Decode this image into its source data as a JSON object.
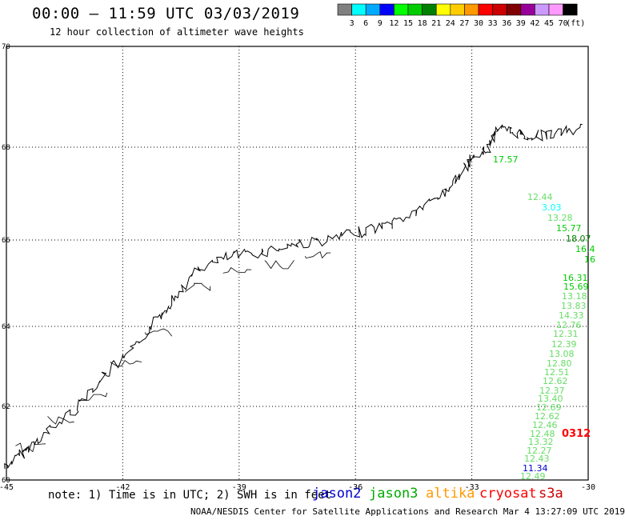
{
  "header": {
    "title": "00:00 – 11:59 UTC 03/03/2019",
    "subtitle": "12 hour collection of altimeter wave heights"
  },
  "legend": {
    "unit": "(ft)",
    "bins": [
      {
        "label": "3",
        "color": "#808080"
      },
      {
        "label": "6",
        "color": "#00ffff"
      },
      {
        "label": "9",
        "color": "#00aaff"
      },
      {
        "label": "12",
        "color": "#0000ff"
      },
      {
        "label": "15",
        "color": "#00ff00"
      },
      {
        "label": "18",
        "color": "#00cc00"
      },
      {
        "label": "21",
        "color": "#008000"
      },
      {
        "label": "24",
        "color": "#ffff00"
      },
      {
        "label": "27",
        "color": "#ffcc00"
      },
      {
        "label": "30",
        "color": "#ff9900"
      },
      {
        "label": "33",
        "color": "#ff0000"
      },
      {
        "label": "36",
        "color": "#cc0000"
      },
      {
        "label": "39",
        "color": "#800000"
      },
      {
        "label": "42",
        "color": "#990099"
      },
      {
        "label": "45",
        "color": "#cc99ff"
      },
      {
        "label": "70",
        "color": "#ff99ff"
      },
      {
        "label": "",
        "color": "#000000"
      }
    ]
  },
  "map": {
    "lon_range": [
      -45,
      -30
    ],
    "lat_range": [
      60,
      70
    ],
    "lon_ticks": [
      "-45",
      "-42",
      "-39",
      "-36",
      "-33",
      "-30"
    ],
    "lat_ticks": [
      "70",
      "68",
      "66",
      "64",
      "62",
      "60"
    ],
    "grid": true
  },
  "observations": [
    {
      "value": "17.57",
      "color": "#00cc00"
    },
    {
      "value": "12.44",
      "color": "#66dd66"
    },
    {
      "value": "3.03",
      "color": "#00ffff"
    },
    {
      "value": "13.28",
      "color": "#66dd66"
    },
    {
      "value": "15.77",
      "color": "#00cc00"
    },
    {
      "value": "18.07",
      "color": "#008000"
    },
    {
      "value": "16.4",
      "color": "#00cc00"
    },
    {
      "value": "16",
      "color": "#00cc00"
    },
    {
      "value": "16.31",
      "color": "#00cc00"
    },
    {
      "value": "15.69",
      "color": "#00cc00"
    },
    {
      "value": "13.18",
      "color": "#66dd66"
    },
    {
      "value": "13.83",
      "color": "#66dd66"
    },
    {
      "value": "14.33",
      "color": "#66dd66"
    },
    {
      "value": "12.76",
      "color": "#66dd66"
    },
    {
      "value": "12.31",
      "color": "#66dd66"
    },
    {
      "value": "12.39",
      "color": "#66dd66"
    },
    {
      "value": "13.08",
      "color": "#66dd66"
    },
    {
      "value": "12.80",
      "color": "#66dd66"
    },
    {
      "value": "12.51",
      "color": "#66dd66"
    },
    {
      "value": "12.62",
      "color": "#66dd66"
    },
    {
      "value": "12.37",
      "color": "#66dd66"
    },
    {
      "value": "13.40",
      "color": "#66dd66"
    },
    {
      "value": "12.69",
      "color": "#66dd66"
    },
    {
      "value": "12.62",
      "color": "#66dd66"
    },
    {
      "value": "12.46",
      "color": "#66dd66"
    },
    {
      "value": "12.48",
      "color": "#66dd66"
    },
    {
      "value": "13.32",
      "color": "#66dd66"
    },
    {
      "value": "12.27",
      "color": "#66dd66"
    },
    {
      "value": "12.43",
      "color": "#66dd66"
    },
    {
      "value": "11.34",
      "color": "#0000cc"
    },
    {
      "value": "12.49",
      "color": "#66dd66"
    },
    {
      "value": "0312",
      "color": "#ff0000"
    }
  ],
  "footer": {
    "note": "note: 1) Time is in UTC; 2) SWH is in feet",
    "satellites": [
      {
        "name": "jason2",
        "color": "#0000cc"
      },
      {
        "name": "jason3",
        "color": "#00aa00"
      },
      {
        "name": "altika",
        "color": "#ff9900"
      },
      {
        "name": "cryosat",
        "color": "#ff0000"
      },
      {
        "name": "s3a",
        "color": "#cc0000"
      }
    ],
    "credit": "NOAA/NESDIS Center for Satellite Applications and Research   Mar  4 13:27:09 UTC 2019"
  }
}
